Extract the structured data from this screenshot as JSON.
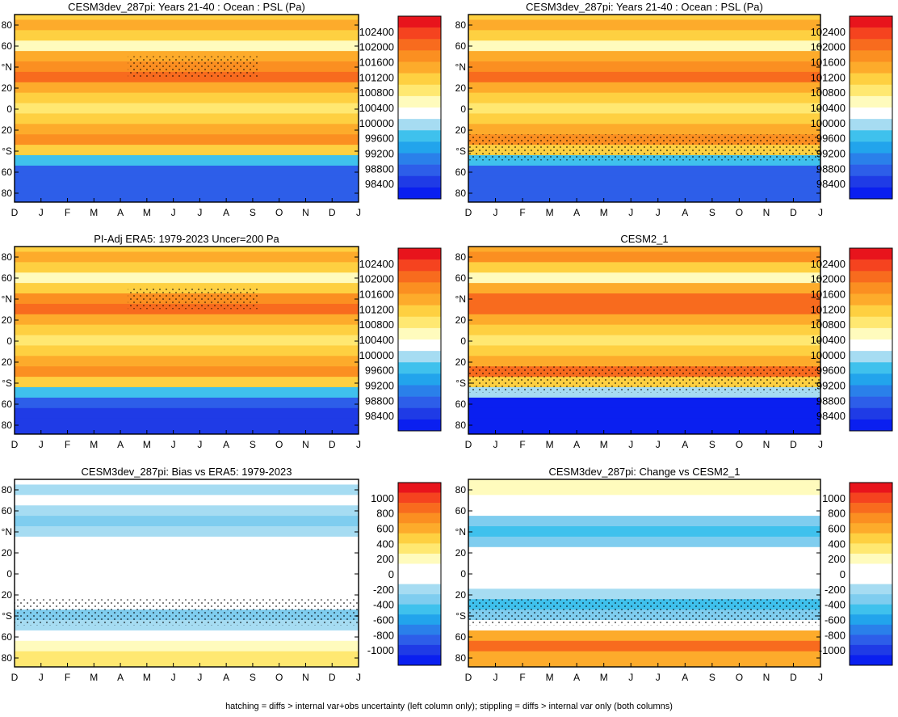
{
  "figure": {
    "footnote": "hatching = diffs > internal var+obs uncertainty (left column only); stippling = diffs > internal var only (both columns)"
  },
  "scales": {
    "psl": {
      "labels": [
        "102400",
        "102000",
        "101600",
        "101200",
        "100800",
        "100400",
        "100000",
        "99600",
        "99200",
        "98800",
        "98400"
      ],
      "colors": [
        "#e8141c",
        "#f5431f",
        "#f86b1e",
        "#fb8f21",
        "#fdab2b",
        "#fed041",
        "#ffe871",
        "#fffbbd",
        "#ffffff",
        "#a6dcf2",
        "#3fc1ed",
        "#22a4ec",
        "#2a80ea",
        "#2d5ee9",
        "#1f3be6",
        "#0a1ff0"
      ]
    },
    "diff": {
      "labels": [
        "1000",
        "800",
        "600",
        "400",
        "200",
        "0",
        "-200",
        "-400",
        "-600",
        "-800",
        "-1000"
      ],
      "colors": [
        "#e8141c",
        "#f5431f",
        "#f86b1e",
        "#fb8f21",
        "#fdab2b",
        "#fed041",
        "#ffe871",
        "#fffbbd",
        "#ffffff",
        "#ffffff",
        "#a6dcf2",
        "#7fcdef",
        "#3fc1ed",
        "#22a4ec",
        "#2a80ea",
        "#2d5ee9",
        "#1f3be6",
        "#0a1ff0"
      ]
    }
  },
  "chart_data": [
    {
      "type": "heatmap",
      "title": "CESM3dev_287pi: Years 21-40 : Ocean : PSL (Pa)",
      "variable": "PSL",
      "units": "Pa",
      "scale": "psl",
      "x": [
        "D",
        "J",
        "F",
        "M",
        "A",
        "M",
        "J",
        "J",
        "A",
        "S",
        "O",
        "N",
        "D",
        "J"
      ],
      "y_ticks": [
        "80",
        "60",
        "°N",
        "20",
        "0",
        "20",
        "°S",
        "60",
        "80"
      ],
      "ylim": [
        -90,
        90
      ],
      "zonal_profile": {
        "lat": [
          90,
          80,
          70,
          60,
          50,
          40,
          30,
          20,
          10,
          0,
          -10,
          -20,
          -30,
          -40,
          -50,
          -60,
          -70,
          -80
        ],
        "value": [
          101100,
          101400,
          101000,
          100500,
          101300,
          101700,
          101900,
          101450,
          101100,
          100800,
          101000,
          101300,
          101650,
          101100,
          99800,
          98900,
          98700,
          98900
        ]
      }
    },
    {
      "type": "heatmap",
      "title": "CESM3dev_287pi: Years 21-40 : Ocean : PSL (Pa)",
      "variable": "PSL",
      "units": "Pa",
      "scale": "psl",
      "x": [
        "D",
        "J",
        "F",
        "M",
        "A",
        "M",
        "J",
        "J",
        "A",
        "S",
        "O",
        "N",
        "D",
        "J"
      ],
      "y_ticks": [
        "80",
        "60",
        "°N",
        "20",
        "0",
        "20",
        "°S",
        "60",
        "80"
      ],
      "ylim": [
        -90,
        90
      ],
      "zonal_profile": {
        "lat": [
          90,
          80,
          70,
          60,
          50,
          40,
          30,
          20,
          10,
          0,
          -10,
          -20,
          -30,
          -40,
          -50,
          -60,
          -70,
          -80
        ],
        "value": [
          101100,
          101400,
          101000,
          100500,
          101300,
          101700,
          101900,
          101450,
          101100,
          100800,
          101000,
          101300,
          101650,
          101100,
          99800,
          98900,
          98700,
          98900
        ]
      }
    },
    {
      "type": "heatmap",
      "title": "PI-Adj ERA5: 1979-2023 Uncer=200 Pa",
      "variable": "PSL",
      "units": "Pa",
      "scale": "psl",
      "x": [
        "D",
        "J",
        "F",
        "M",
        "A",
        "M",
        "J",
        "J",
        "A",
        "S",
        "O",
        "N",
        "D",
        "J"
      ],
      "y_ticks": [
        "80",
        "60",
        "°N",
        "20",
        "0",
        "20",
        "°S",
        "60",
        "80"
      ],
      "ylim": [
        -90,
        90
      ],
      "zonal_profile": {
        "lat": [
          90,
          80,
          70,
          60,
          50,
          40,
          30,
          20,
          10,
          0,
          -10,
          -20,
          -30,
          -40,
          -50,
          -60,
          -70,
          -80
        ],
        "value": [
          101200,
          101500,
          101000,
          100500,
          101200,
          101700,
          101900,
          101400,
          101100,
          100800,
          101000,
          101300,
          101700,
          101100,
          99800,
          98900,
          98600,
          98600
        ]
      }
    },
    {
      "type": "heatmap",
      "title": "CESM2_1",
      "variable": "PSL",
      "units": "Pa",
      "scale": "psl",
      "x": [
        "D",
        "J",
        "F",
        "M",
        "A",
        "M",
        "J",
        "J",
        "A",
        "S",
        "O",
        "N",
        "D",
        "J"
      ],
      "y_ticks": [
        "80",
        "60",
        "°N",
        "20",
        "0",
        "20",
        "°S",
        "60",
        "80"
      ],
      "ylim": [
        -90,
        90
      ],
      "zonal_profile": {
        "lat": [
          90,
          80,
          70,
          60,
          50,
          40,
          30,
          20,
          10,
          0,
          -10,
          -20,
          -30,
          -40,
          -50,
          -60,
          -70,
          -80
        ],
        "value": [
          101300,
          101600,
          101100,
          100600,
          101400,
          101900,
          102100,
          101500,
          101100,
          100800,
          101000,
          101500,
          101900,
          101200,
          99900,
          98400,
          98300,
          98400
        ]
      }
    },
    {
      "type": "heatmap",
      "title": "CESM3dev_287pi: Bias vs ERA5: 1979-2023",
      "variable": "PSL difference",
      "units": "Pa",
      "scale": "diff",
      "x": [
        "D",
        "J",
        "F",
        "M",
        "A",
        "M",
        "J",
        "J",
        "A",
        "S",
        "O",
        "N",
        "D",
        "J"
      ],
      "y_ticks": [
        "80",
        "60",
        "°N",
        "20",
        "0",
        "20",
        "°S",
        "60",
        "80"
      ],
      "ylim": [
        -90,
        90
      ],
      "zonal_profile": {
        "lat": [
          90,
          80,
          70,
          60,
          50,
          40,
          30,
          20,
          10,
          0,
          -10,
          -20,
          -30,
          -40,
          -50,
          -60,
          -70,
          -80
        ],
        "value": [
          -100,
          -150,
          -100,
          -200,
          -250,
          -150,
          -50,
          0,
          0,
          0,
          0,
          0,
          -50,
          -250,
          -150,
          0,
          200,
          300
        ]
      }
    },
    {
      "type": "heatmap",
      "title": "CESM3dev_287pi: Change vs CESM2_1",
      "variable": "PSL difference",
      "units": "Pa",
      "scale": "diff",
      "x": [
        "D",
        "J",
        "F",
        "M",
        "A",
        "M",
        "J",
        "J",
        "A",
        "S",
        "O",
        "N",
        "D",
        "J"
      ],
      "y_ticks": [
        "80",
        "60",
        "°N",
        "20",
        "0",
        "20",
        "°S",
        "60",
        "80"
      ],
      "ylim": [
        -90,
        90
      ],
      "zonal_profile": {
        "lat": [
          90,
          80,
          70,
          60,
          50,
          40,
          30,
          20,
          10,
          0,
          -10,
          -20,
          -30,
          -40,
          -50,
          -60,
          -70,
          -80
        ],
        "value": [
          200,
          250,
          0,
          0,
          -300,
          -400,
          -300,
          0,
          0,
          0,
          0,
          -200,
          -400,
          -300,
          0,
          600,
          800,
          600
        ]
      }
    }
  ]
}
